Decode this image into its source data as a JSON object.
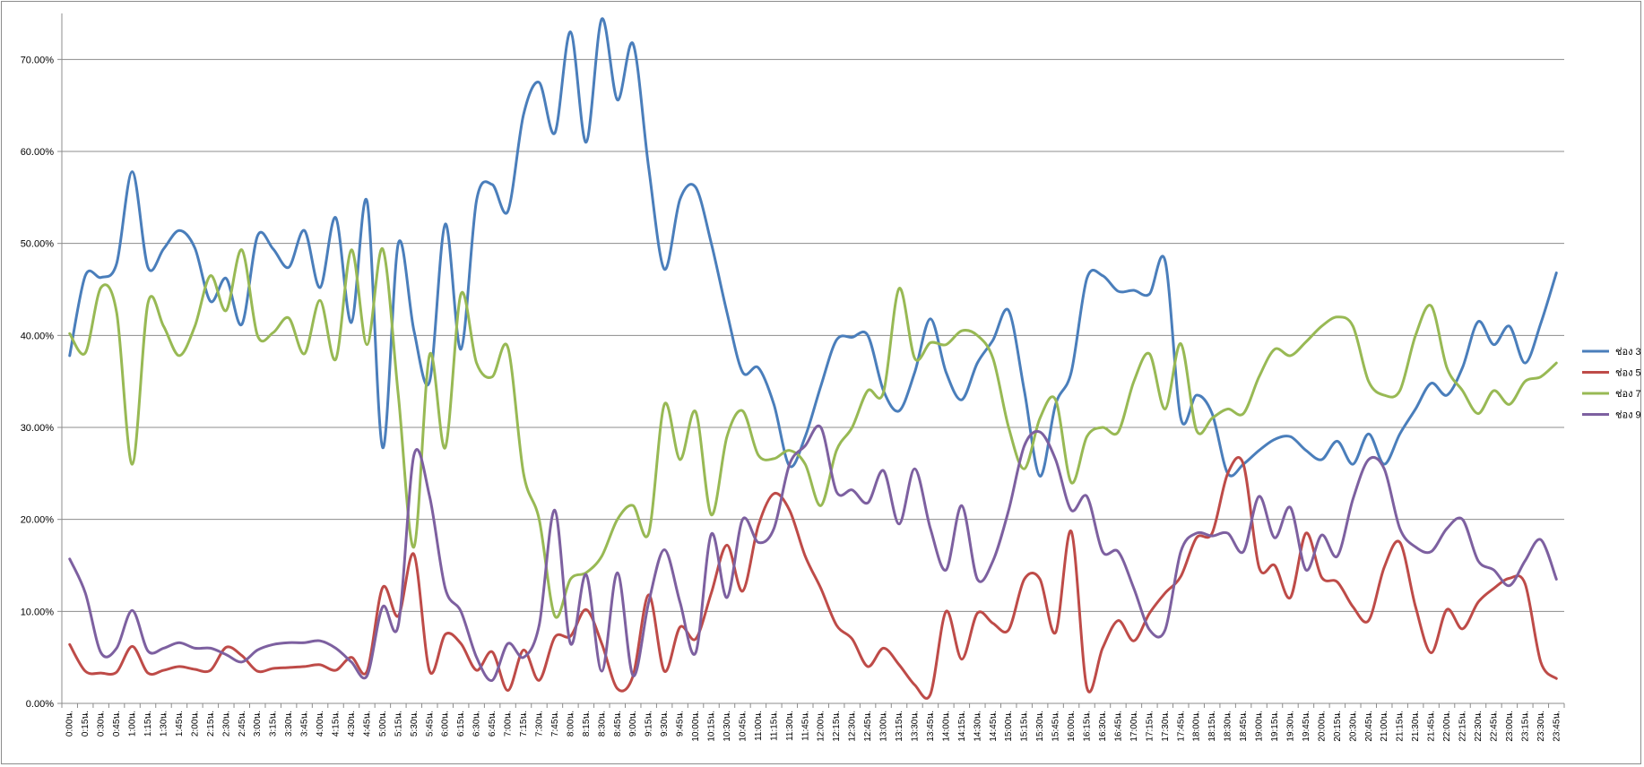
{
  "chart_data": {
    "type": "line",
    "title": "",
    "xlabel": "",
    "ylabel": "",
    "ylim": [
      0,
      0.75
    ],
    "yticks": [
      "0.00%",
      "10.00%",
      "20.00%",
      "30.00%",
      "40.00%",
      "50.00%",
      "60.00%",
      "70.00%"
    ],
    "grid": true,
    "legend_position": "right",
    "categories": [
      "0:00น.",
      "0:15น.",
      "0:30น.",
      "0:45น.",
      "1:00น.",
      "1:15น.",
      "1:30น.",
      "1:45น.",
      "2:00น.",
      "2:15น.",
      "2:30น.",
      "2:45น.",
      "3:00น.",
      "3:15น.",
      "3:30น.",
      "3:45น.",
      "4:00น.",
      "4:15น.",
      "4:30น.",
      "4:45น.",
      "5:00น.",
      "5:15น.",
      "5:30น.",
      "5:45น.",
      "6:00น.",
      "6:15น.",
      "6:30น.",
      "6:45น.",
      "7:00น.",
      "7:15น.",
      "7:30น.",
      "7:45น.",
      "8:00น.",
      "8:15น.",
      "8:30น.",
      "8:45น.",
      "9:00น.",
      "9:15น.",
      "9:30น.",
      "9:45น.",
      "10:00น.",
      "10:15น.",
      "10:30น.",
      "10:45น.",
      "11:00น.",
      "11:15น.",
      "11:30น.",
      "11:45น.",
      "12:00น.",
      "12:15น.",
      "12:30น.",
      "12:45น.",
      "13:00น.",
      "13:15น.",
      "13:30น.",
      "13:45น.",
      "14:00น.",
      "14:15น.",
      "14:30น.",
      "14:45น.",
      "15:00น.",
      "15:15น.",
      "15:30น.",
      "15:45น.",
      "16:00น.",
      "16:15น.",
      "16:30น.",
      "16:45น.",
      "17:00น.",
      "17:15น.",
      "17:30น.",
      "17:45น.",
      "18:00น.",
      "18:15น.",
      "18:30น.",
      "18:45น.",
      "19:00น.",
      "19:15น.",
      "19:30น.",
      "19:45น.",
      "20:00น.",
      "20:15น.",
      "20:30น.",
      "20:45น.",
      "21:00น.",
      "21:15น.",
      "21:30น.",
      "21:45น.",
      "22:00น.",
      "22:15น.",
      "22:30น.",
      "22:45น.",
      "23:00น.",
      "23:15น.",
      "23:30น.",
      "23:45น."
    ],
    "series": [
      {
        "name": "ช่อง 3",
        "color": "#4a7ebb",
        "values": [
          0.378,
          0.465,
          0.463,
          0.478,
          0.578,
          0.474,
          0.494,
          0.514,
          0.495,
          0.437,
          0.462,
          0.412,
          0.508,
          0.494,
          0.474,
          0.514,
          0.452,
          0.528,
          0.414,
          0.546,
          0.278,
          0.5,
          0.405,
          0.35,
          0.521,
          0.385,
          0.547,
          0.564,
          0.535,
          0.64,
          0.675,
          0.62,
          0.73,
          0.61,
          0.744,
          0.656,
          0.717,
          0.582,
          0.472,
          0.548,
          0.561,
          0.5,
          0.425,
          0.36,
          0.365,
          0.325,
          0.258,
          0.29,
          0.345,
          0.395,
          0.398,
          0.4,
          0.34,
          0.318,
          0.36,
          0.418,
          0.36,
          0.33,
          0.37,
          0.395,
          0.427,
          0.34,
          0.247,
          0.325,
          0.36,
          0.462,
          0.465,
          0.448,
          0.449,
          0.445,
          0.481,
          0.31,
          0.335,
          0.315,
          0.25,
          0.26,
          0.275,
          0.287,
          0.29,
          0.275,
          0.265,
          0.285,
          0.26,
          0.293,
          0.26,
          0.293,
          0.32,
          0.348,
          0.335,
          0.365,
          0.415,
          0.39,
          0.41,
          0.37,
          0.413,
          0.468
        ]
      },
      {
        "name": "ช่อง 5",
        "color": "#be4b48",
        "values": [
          0.064,
          0.035,
          0.033,
          0.034,
          0.062,
          0.033,
          0.036,
          0.04,
          0.037,
          0.036,
          0.061,
          0.052,
          0.035,
          0.038,
          0.039,
          0.04,
          0.042,
          0.036,
          0.05,
          0.035,
          0.126,
          0.095,
          0.162,
          0.035,
          0.075,
          0.065,
          0.036,
          0.056,
          0.014,
          0.058,
          0.025,
          0.072,
          0.073,
          0.102,
          0.065,
          0.016,
          0.03,
          0.118,
          0.035,
          0.083,
          0.07,
          0.12,
          0.172,
          0.122,
          0.193,
          0.228,
          0.21,
          0.16,
          0.125,
          0.085,
          0.07,
          0.04,
          0.06,
          0.042,
          0.02,
          0.01,
          0.1,
          0.048,
          0.098,
          0.087,
          0.08,
          0.135,
          0.135,
          0.077,
          0.187,
          0.017,
          0.06,
          0.09,
          0.068,
          0.098,
          0.12,
          0.138,
          0.18,
          0.185,
          0.25,
          0.26,
          0.148,
          0.15,
          0.115,
          0.185,
          0.137,
          0.132,
          0.105,
          0.09,
          0.148,
          0.175,
          0.105,
          0.055,
          0.102,
          0.081,
          0.11,
          0.125,
          0.136,
          0.13,
          0.045,
          0.027
        ]
      },
      {
        "name": "ช่อง 7",
        "color": "#98b954",
        "values": [
          0.402,
          0.381,
          0.452,
          0.425,
          0.26,
          0.435,
          0.41,
          0.378,
          0.41,
          0.465,
          0.427,
          0.493,
          0.4,
          0.403,
          0.419,
          0.38,
          0.438,
          0.374,
          0.493,
          0.39,
          0.494,
          0.335,
          0.17,
          0.379,
          0.278,
          0.445,
          0.37,
          0.355,
          0.387,
          0.25,
          0.2,
          0.095,
          0.135,
          0.142,
          0.16,
          0.2,
          0.215,
          0.185,
          0.325,
          0.265,
          0.317,
          0.205,
          0.29,
          0.318,
          0.27,
          0.266,
          0.275,
          0.26,
          0.215,
          0.275,
          0.3,
          0.34,
          0.338,
          0.451,
          0.375,
          0.392,
          0.39,
          0.405,
          0.4,
          0.375,
          0.3,
          0.255,
          0.31,
          0.33,
          0.24,
          0.29,
          0.3,
          0.295,
          0.35,
          0.38,
          0.32,
          0.391,
          0.297,
          0.31,
          0.32,
          0.315,
          0.355,
          0.385,
          0.378,
          0.393,
          0.41,
          0.42,
          0.41,
          0.35,
          0.335,
          0.34,
          0.4,
          0.432,
          0.365,
          0.34,
          0.315,
          0.34,
          0.325,
          0.35,
          0.355,
          0.37
        ]
      },
      {
        "name": "ช่อง 9",
        "color": "#7d60a0",
        "values": [
          0.157,
          0.12,
          0.055,
          0.06,
          0.101,
          0.057,
          0.06,
          0.066,
          0.06,
          0.06,
          0.053,
          0.045,
          0.058,
          0.064,
          0.066,
          0.066,
          0.068,
          0.06,
          0.045,
          0.03,
          0.105,
          0.085,
          0.27,
          0.225,
          0.125,
          0.1,
          0.05,
          0.025,
          0.065,
          0.05,
          0.085,
          0.21,
          0.065,
          0.14,
          0.035,
          0.142,
          0.03,
          0.11,
          0.167,
          0.11,
          0.055,
          0.184,
          0.115,
          0.2,
          0.175,
          0.19,
          0.26,
          0.28,
          0.3,
          0.23,
          0.232,
          0.218,
          0.253,
          0.195,
          0.255,
          0.19,
          0.145,
          0.215,
          0.135,
          0.155,
          0.21,
          0.28,
          0.295,
          0.265,
          0.21,
          0.225,
          0.165,
          0.165,
          0.125,
          0.08,
          0.08,
          0.165,
          0.185,
          0.182,
          0.185,
          0.165,
          0.225,
          0.18,
          0.213,
          0.145,
          0.183,
          0.16,
          0.222,
          0.265,
          0.255,
          0.19,
          0.17,
          0.165,
          0.19,
          0.2,
          0.155,
          0.145,
          0.128,
          0.155,
          0.178,
          0.135
        ]
      }
    ]
  }
}
